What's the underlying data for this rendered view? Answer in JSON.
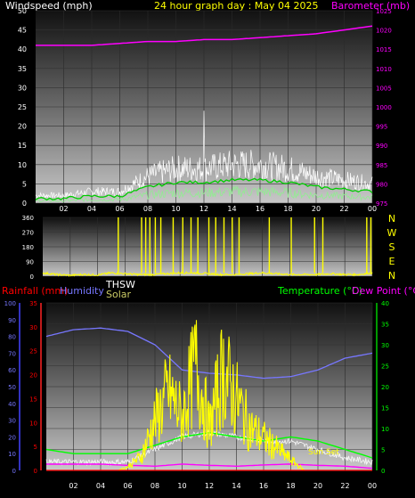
{
  "header": {
    "wind_label": "Windspeed (mph)",
    "title": "24 hour graph day : May 04 2025",
    "baro_label": "Barometer (mb)"
  },
  "x_ticks": [
    "02",
    "04",
    "06",
    "08",
    "10",
    "12",
    "14",
    "16",
    "18",
    "20",
    "22",
    "00"
  ],
  "colors": {
    "wind": "#ffffff",
    "gust_avg": "#00cc00",
    "wind_avg": "#90ee90",
    "barometer": "#ff00ff",
    "direction": "#ffff00",
    "rainfall": "#ff0000",
    "humidity": "#7777ff",
    "thsw": "#ffffff",
    "solar": "#ffff00",
    "temperature": "#00ff00",
    "dewpoint": "#ff00ff"
  },
  "bottom_labels": {
    "rainfall": "Rainfall (mm)",
    "humidity": "Humidity",
    "thsw": "THSW",
    "solar": "Solar",
    "temperature": "Temperature (°C)",
    "dewpoint": "Dew Point (°C)",
    "annotation": "Sun Set"
  },
  "chart_data": [
    {
      "type": "line",
      "series": [
        {
          "name": "Windspeed (mph)",
          "x": [
            0,
            2,
            4,
            6,
            8,
            10,
            12,
            14,
            16,
            18,
            20,
            22,
            24
          ],
          "values": [
            2,
            2,
            3,
            3,
            7,
            9,
            9,
            10,
            10,
            9,
            7,
            6,
            5
          ]
        },
        {
          "name": "Barometer (mb)",
          "x": [
            0,
            2,
            4,
            6,
            8,
            10,
            12,
            14,
            16,
            18,
            20,
            22,
            24
          ],
          "values": [
            1016,
            1016,
            1016,
            1016.5,
            1017,
            1017,
            1017.5,
            1017.5,
            1018,
            1018.5,
            1019,
            1020,
            1021
          ]
        }
      ],
      "wind_peak": 24,
      "ylim_left": [
        0,
        50
      ],
      "ylim_right": [
        975,
        1025
      ],
      "yticks_left": [
        0,
        5,
        10,
        15,
        20,
        25,
        30,
        35,
        40,
        45,
        50
      ],
      "yticks_right": [
        975,
        980,
        985,
        990,
        995,
        1000,
        1005,
        1010,
        1015,
        1020,
        1025
      ],
      "xlabel": "",
      "ylabel": "Windspeed (mph)",
      "ylabel_right": "Barometer (mb)"
    },
    {
      "type": "line",
      "series": [
        {
          "x": [
            0,
            1,
            2,
            3,
            4,
            5,
            6,
            7,
            8,
            9,
            10,
            11,
            12,
            13,
            14,
            15,
            16,
            17,
            18,
            19,
            20,
            21,
            22,
            23,
            24
          ],
          "values": [
            20,
            10,
            5,
            10,
            8,
            20,
            15,
            10,
            10,
            15,
            20,
            20,
            15,
            10,
            10,
            15,
            20,
            15,
            10,
            10,
            10,
            15,
            10,
            10,
            20
          ]
        }
      ],
      "ylim": [
        0,
        360
      ],
      "yticks": [
        0,
        90,
        180,
        270,
        360
      ],
      "compass": [
        "N",
        "W",
        "S",
        "E",
        "N"
      ]
    },
    {
      "type": "line",
      "series": [
        {
          "name": "Humidity",
          "x": [
            0,
            2,
            4,
            6,
            8,
            10,
            12,
            14,
            16,
            18,
            20,
            22,
            24
          ],
          "values": [
            80,
            84,
            85,
            83,
            75,
            60,
            58,
            57,
            55,
            56,
            60,
            67,
            70
          ]
        },
        {
          "name": "Temperature (°C)",
          "x": [
            0,
            2,
            4,
            6,
            8,
            10,
            12,
            14,
            16,
            18,
            20,
            22,
            24
          ],
          "values": [
            5,
            4,
            4,
            4,
            6,
            8,
            9,
            8,
            7,
            8,
            7,
            5,
            3
          ]
        },
        {
          "name": "THSW",
          "x": [
            0,
            2,
            4,
            6,
            8,
            10,
            12,
            14,
            16,
            18,
            20,
            22,
            24
          ],
          "values": [
            2,
            2,
            2,
            2,
            5,
            8,
            9,
            8,
            7,
            7,
            5,
            3,
            2
          ]
        },
        {
          "name": "Dew Point (°C)",
          "x": [
            0,
            2,
            4,
            6,
            8,
            10,
            12,
            14,
            16,
            18,
            20,
            22,
            24
          ],
          "values": [
            1.5,
            1.5,
            1.5,
            1.2,
            1.0,
            1.5,
            1.2,
            1.0,
            1.3,
            1.5,
            1.2,
            1.0,
            0.5
          ]
        },
        {
          "name": "Solar",
          "x": [
            0,
            5.3,
            6,
            7,
            8,
            9,
            10,
            11,
            12,
            13,
            14,
            15,
            16,
            17,
            18,
            19,
            20,
            24
          ],
          "values": [
            0,
            0,
            1,
            4,
            14,
            22,
            15,
            30,
            12,
            28,
            20,
            12,
            9,
            6,
            3,
            0,
            0,
            0
          ]
        },
        {
          "name": "Rainfall (mm)",
          "x": [
            0,
            24
          ],
          "values": [
            0,
            0
          ]
        }
      ],
      "ylim_left_humidity": [
        0,
        100
      ],
      "ylim_left_rain": [
        0,
        35
      ],
      "ylim_right": [
        0,
        40
      ],
      "yticks_humidity": [
        0,
        10,
        20,
        30,
        40,
        50,
        60,
        70,
        80,
        90,
        100
      ],
      "yticks_rain": [
        0,
        5,
        10,
        15,
        20,
        25,
        30,
        35
      ],
      "yticks_right": [
        0,
        5,
        10,
        15,
        20,
        25,
        30,
        35,
        40
      ]
    }
  ]
}
